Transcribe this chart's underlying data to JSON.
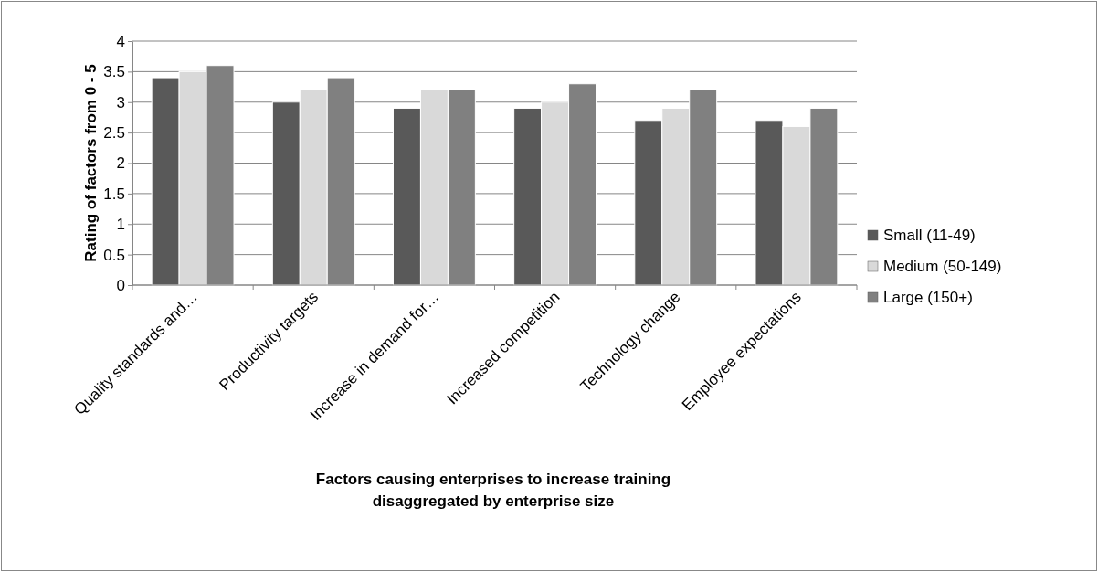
{
  "chart_data": {
    "type": "bar",
    "xlabel": "Factors causing enterprises to increase training disaggregated by enterprise size",
    "ylabel": "Rating of factors from  0 - 5",
    "categories": [
      "Quality standards and…",
      "Productivity targets",
      "Increase in demand for…",
      "Increased competition",
      "Technology change",
      "Employee expectations"
    ],
    "series": [
      {
        "name": "Small (11-49)",
        "color": "#595959",
        "values": [
          3.4,
          3.0,
          2.9,
          2.9,
          2.7,
          2.7
        ]
      },
      {
        "name": "Medium (50-149)",
        "color": "#d9d9d9",
        "values": [
          3.5,
          3.2,
          3.2,
          3.0,
          2.9,
          2.6
        ]
      },
      {
        "name": "Large (150+)",
        "color": "#808080",
        "values": [
          3.6,
          3.4,
          3.2,
          3.3,
          3.2,
          2.9
        ]
      }
    ],
    "ylim": [
      0,
      4
    ],
    "yticks": [
      0,
      0.5,
      1,
      1.5,
      2,
      2.5,
      3,
      3.5,
      4
    ],
    "grid": "y",
    "legend": "right"
  }
}
